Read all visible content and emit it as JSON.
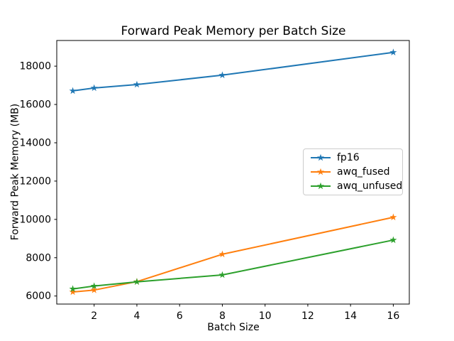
{
  "chart_data": {
    "type": "line",
    "title": "Forward Peak Memory per Batch Size",
    "xlabel": "Batch Size",
    "ylabel": "Forward Peak Memory (MB)",
    "x": [
      1,
      2,
      4,
      8,
      16
    ],
    "series": [
      {
        "name": "fp16",
        "color": "#1f77b4",
        "values": [
          16710,
          16860,
          17040,
          17530,
          18720
        ]
      },
      {
        "name": "awq_fused",
        "color": "#ff7f0e",
        "values": [
          6210,
          6310,
          6750,
          8180,
          10110
        ]
      },
      {
        "name": "awq_unfused",
        "color": "#2ca02c",
        "values": [
          6370,
          6520,
          6740,
          7100,
          8920
        ]
      }
    ],
    "xticks": [
      2,
      4,
      6,
      8,
      10,
      12,
      14,
      16
    ],
    "yticks": [
      6000,
      8000,
      10000,
      12000,
      14000,
      16000,
      18000
    ],
    "xlim": [
      0.25,
      16.75
    ],
    "ylim": [
      5580,
      19340
    ],
    "marker": "star",
    "grid": false,
    "legend": {
      "position": "center-right",
      "entries": [
        "fp16",
        "awq_fused",
        "awq_unfused"
      ]
    }
  },
  "colors": {
    "text": "#000000",
    "axis": "#000000",
    "legend_border": "#cccccc",
    "background": "#ffffff"
  }
}
